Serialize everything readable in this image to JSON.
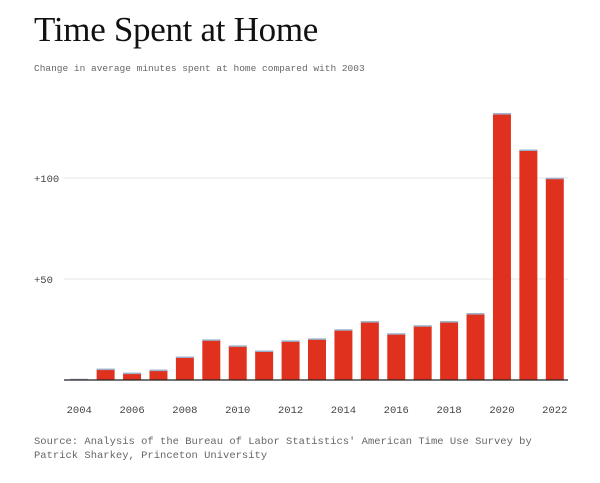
{
  "header": {
    "title": "Time Spent at Home",
    "subtitle": "Change in average minutes spent at home compared with 2003"
  },
  "footer": {
    "source": "Source: Analysis of the Bureau of Labor Statistics' American Time Use Survey by Patrick Sharkey, Princeton University"
  },
  "colors": {
    "bar": "#e0301e",
    "bar_top": "#9ab0c8",
    "grid": "#e6e6e6",
    "axis": "#222222"
  },
  "chart_data": {
    "type": "bar",
    "title": "Time Spent at Home",
    "subtitle": "Change in average minutes spent at home compared with 2003",
    "xlabel": "",
    "ylabel": "",
    "categories": [
      "2004",
      "2005",
      "2006",
      "2007",
      "2008",
      "2009",
      "2010",
      "2011",
      "2012",
      "2013",
      "2014",
      "2015",
      "2016",
      "2017",
      "2018",
      "2019",
      "2020",
      "2021",
      "2022"
    ],
    "values": [
      0.5,
      5.5,
      3.5,
      5,
      11.5,
      20,
      17,
      14.5,
      19.5,
      20.5,
      25,
      29,
      23,
      27,
      29,
      33,
      132,
      114,
      100
    ],
    "ylim": [
      0,
      140
    ],
    "yticks": [
      50,
      100
    ],
    "ytick_labels": [
      "+50",
      "+100"
    ],
    "xticks": [
      "2004",
      "2006",
      "2008",
      "2010",
      "2012",
      "2014",
      "2016",
      "2018",
      "2020",
      "2022"
    ],
    "grid": true
  }
}
